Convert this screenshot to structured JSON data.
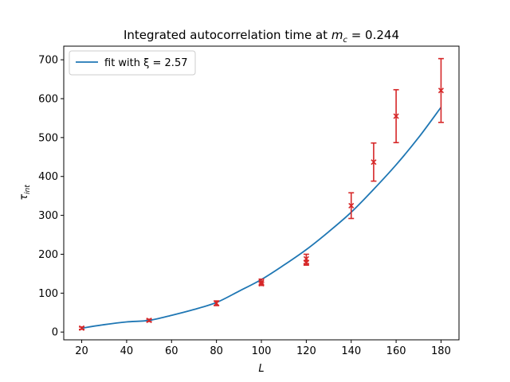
{
  "chart_data": {
    "type": "scatter",
    "title": "Integrated autocorrelation time at m_c = 0.244",
    "title_prefix": "Integrated autocorrelation time at ",
    "title_symbol": "m",
    "title_subscript": "c",
    "title_suffix": " = 0.244",
    "xlabel": "L",
    "ylabel": "τ_int",
    "ylabel_symbol": "τ",
    "ylabel_subscript": "int",
    "xlim": [
      12,
      188
    ],
    "ylim": [
      -20,
      735
    ],
    "x_ticks": [
      20,
      40,
      60,
      80,
      100,
      120,
      140,
      160,
      180
    ],
    "y_ticks": [
      0,
      100,
      200,
      300,
      400,
      500,
      600,
      700
    ],
    "legend": {
      "position": "top-left",
      "entries": [
        "fit with ξ = 2.57"
      ]
    },
    "series": [
      {
        "name": "fit with ξ = 2.57",
        "kind": "line",
        "color": "#1f77b4",
        "x": [
          20,
          30,
          40,
          50,
          60,
          70,
          80,
          90,
          100,
          110,
          120,
          130,
          140,
          150,
          160,
          170,
          180
        ],
        "y": [
          10,
          19,
          26,
          30,
          43,
          58,
          76,
          105,
          135,
          172,
          212,
          258,
          308,
          367,
          430,
          500,
          578
        ]
      },
      {
        "kind": "points",
        "color": "#d62728",
        "points": [
          {
            "x": 20,
            "y": 10,
            "err": 3
          },
          {
            "x": 50,
            "y": 30,
            "err": 3
          },
          {
            "x": 80,
            "y": 74,
            "err": 6
          },
          {
            "x": 100,
            "y": 128,
            "err": 8
          },
          {
            "x": 100,
            "y": 124,
            "err": 4
          },
          {
            "x": 120,
            "y": 188,
            "err": 12
          },
          {
            "x": 120,
            "y": 178,
            "err": 6
          },
          {
            "x": 140,
            "y": 325,
            "err": 33
          },
          {
            "x": 150,
            "y": 437,
            "err": 49
          },
          {
            "x": 160,
            "y": 555,
            "err": 68
          },
          {
            "x": 180,
            "y": 621,
            "err": 82
          }
        ]
      }
    ]
  }
}
